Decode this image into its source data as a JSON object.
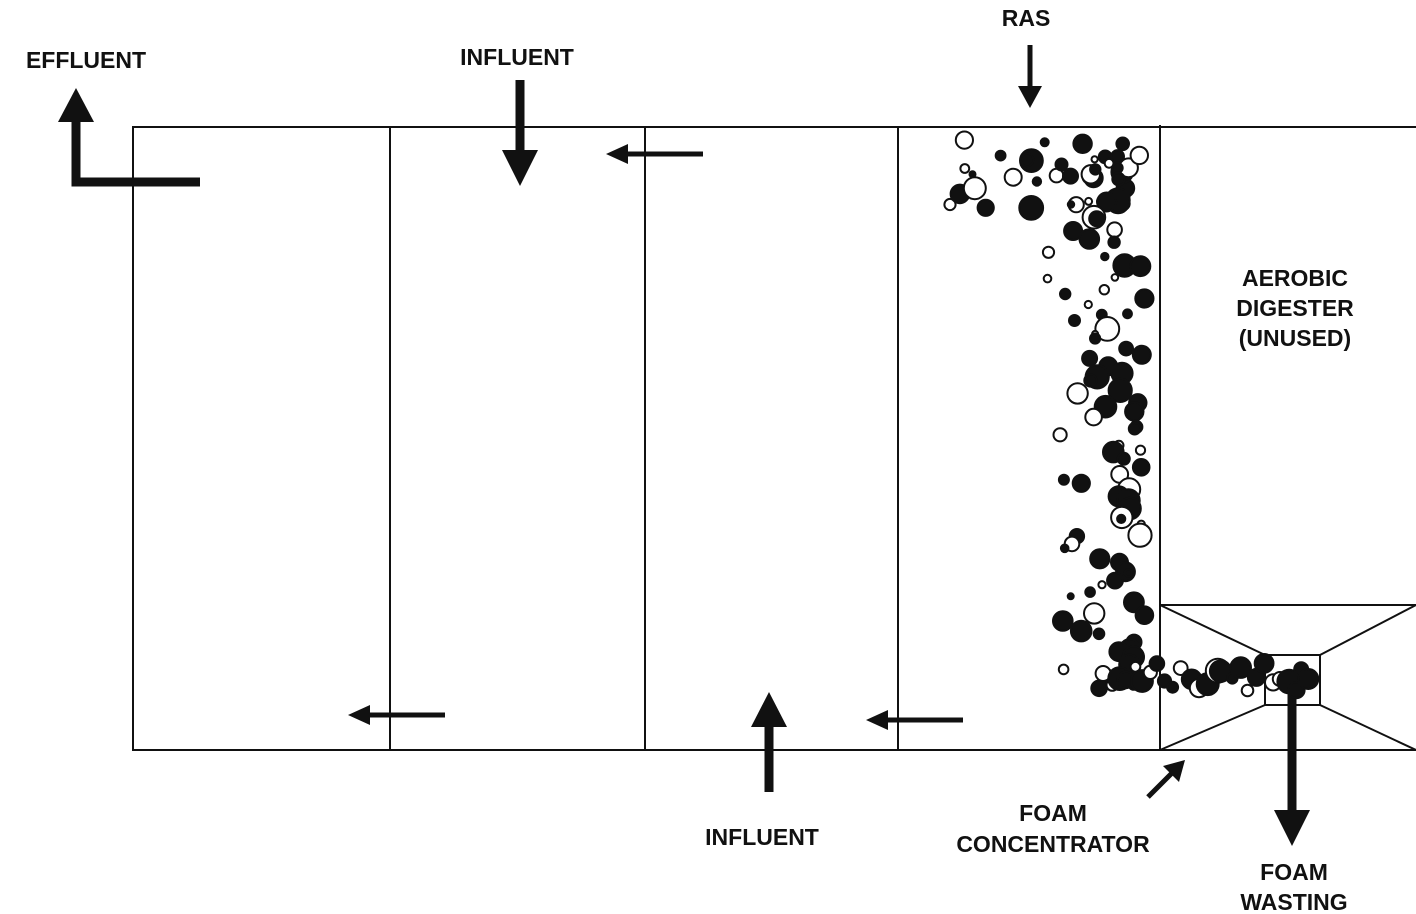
{
  "labels": {
    "effluent": "EFFLUENT",
    "influent_top": "INFLUENT",
    "ras": "RAS",
    "digester": [
      "AEROBIC",
      "DIGESTER",
      "(UNUSED)"
    ],
    "influent_bottom": "INFLUENT",
    "foam_concentrator": [
      "FOAM",
      "CONCENTRATOR"
    ],
    "foam_wasting": [
      "FOAM",
      "WASTING"
    ]
  }
}
